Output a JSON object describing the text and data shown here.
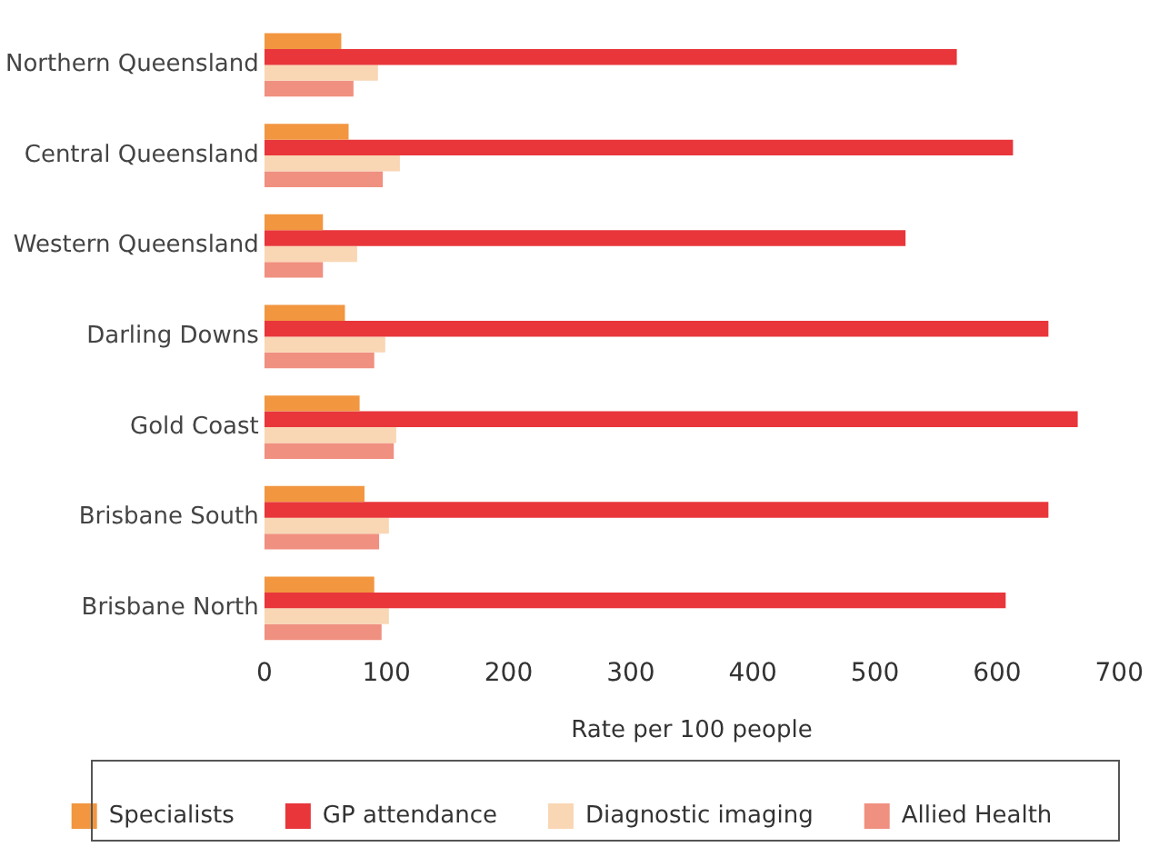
{
  "chart_data": {
    "type": "bar",
    "orientation": "horizontal",
    "xlabel": "Rate per 100 people",
    "categories": [
      "Northern Queensland",
      "Central Queensland",
      "Western Queensland",
      "Darling Downs",
      "Gold Coast",
      "Brisbane South",
      "Brisbane North"
    ],
    "series": [
      {
        "name": "Specialists",
        "color": "#f29640",
        "values": [
          63,
          69,
          48,
          66,
          78,
          82,
          90
        ]
      },
      {
        "name": "GP attendance",
        "color": "#e8363b",
        "values": [
          567,
          613,
          525,
          642,
          666,
          642,
          607
        ]
      },
      {
        "name": "Diagnostic imaging",
        "color": "#f9d6b4",
        "values": [
          93,
          111,
          76,
          99,
          108,
          102,
          102
        ]
      },
      {
        "name": "Allied Health",
        "color": "#f09080",
        "values": [
          73,
          97,
          48,
          90,
          106,
          94,
          96
        ]
      }
    ],
    "xlim": [
      0,
      700
    ],
    "xticks": [
      0,
      100,
      200,
      300,
      400,
      500,
      600,
      700
    ],
    "grid": false,
    "legend": "bottom"
  }
}
